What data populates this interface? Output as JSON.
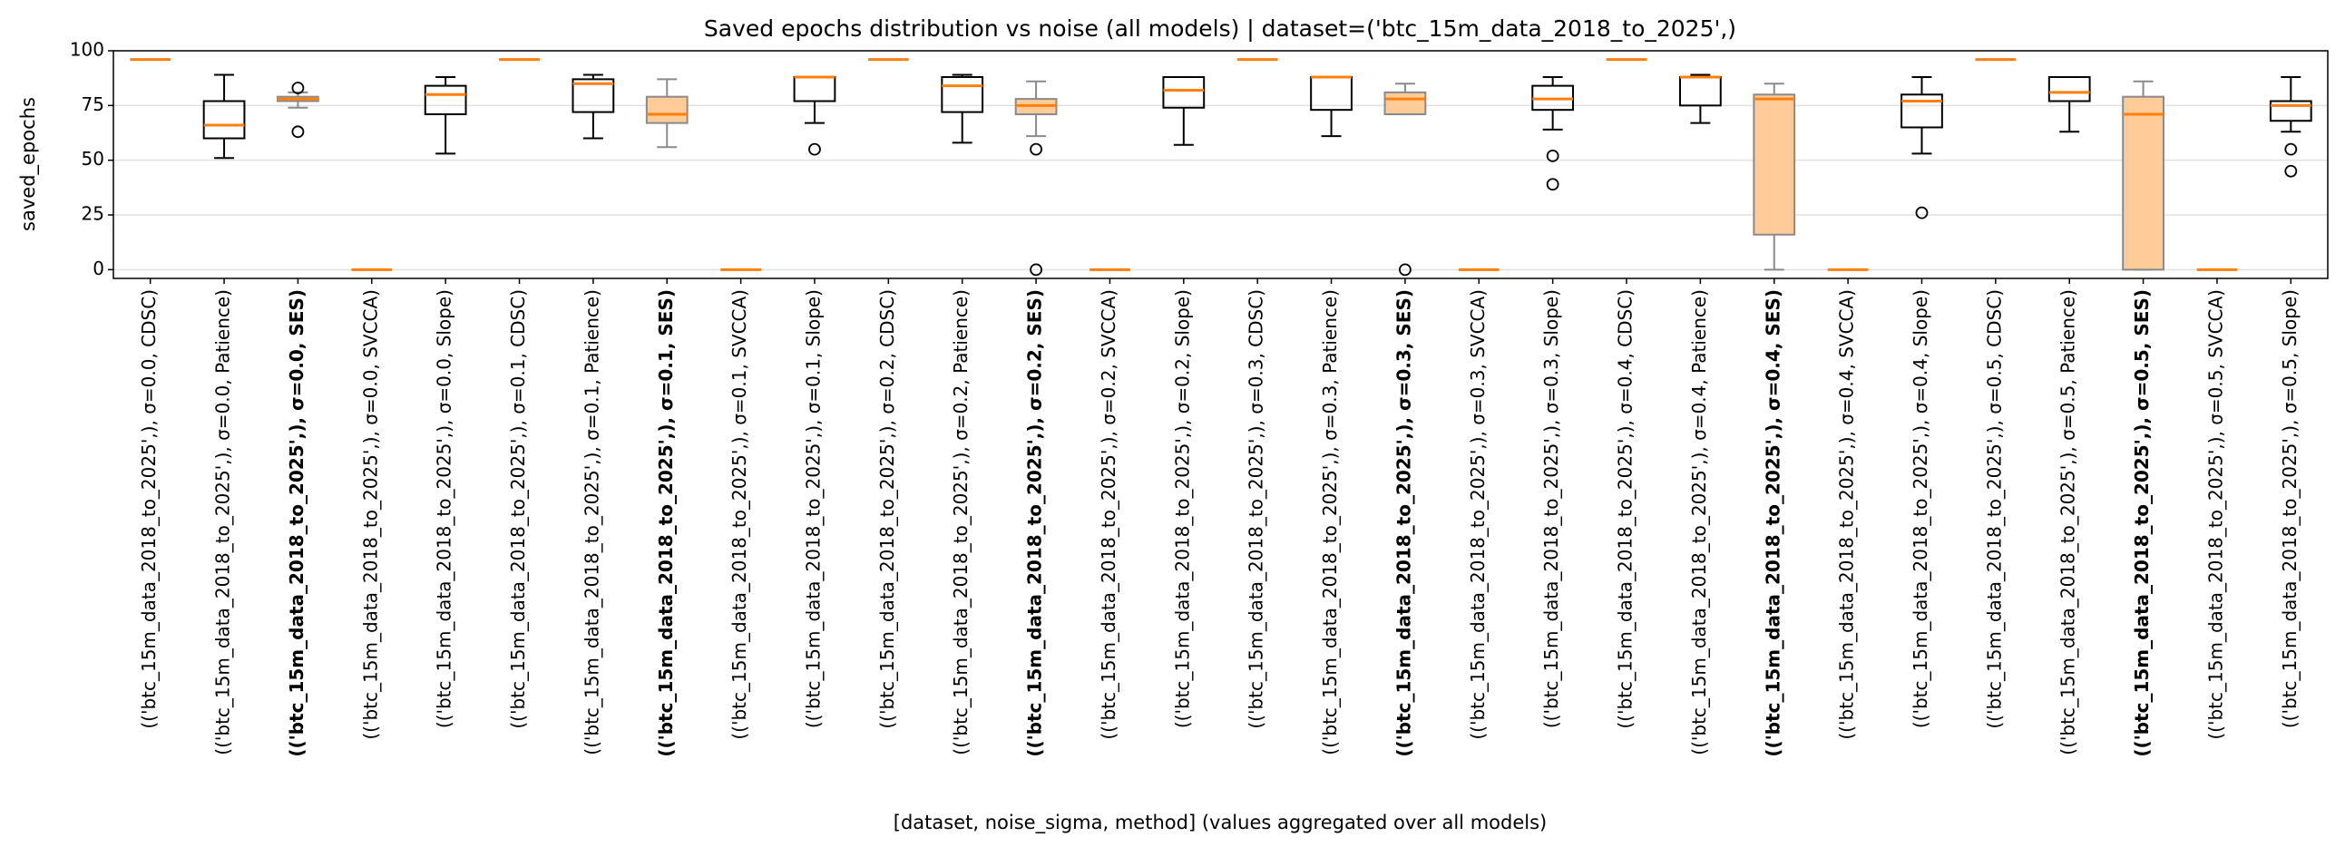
{
  "chart_data": {
    "type": "box",
    "title": "Saved epochs distribution vs noise (all models) | dataset=('btc_15m_data_2018_to_2025',)",
    "xlabel": "[dataset, noise_sigma, method] (values aggregated over all models)",
    "ylabel": "saved_epochs",
    "ylim": [
      -4,
      100
    ],
    "yticks": [
      0,
      25,
      50,
      75,
      100
    ],
    "grid": true,
    "box_color": "#000000",
    "median_color": "#ff7f0e",
    "highlight_color": "#ff7f0e",
    "highlight_fill": "#ffcc99",
    "highlight": [
      2,
      7,
      12,
      17,
      22,
      27
    ],
    "categories": [
      "(('btc_15m_data_2018_to_2025',), σ=0.0, CDSC)",
      "(('btc_15m_data_2018_to_2025',), σ=0.0, Patience)",
      "(('btc_15m_data_2018_to_2025',), σ=0.0, SES)",
      "(('btc_15m_data_2018_to_2025',), σ=0.0, SVCCA)",
      "(('btc_15m_data_2018_to_2025',), σ=0.0, Slope)",
      "(('btc_15m_data_2018_to_2025',), σ=0.1, CDSC)",
      "(('btc_15m_data_2018_to_2025',), σ=0.1, Patience)",
      "(('btc_15m_data_2018_to_2025',), σ=0.1, SES)",
      "(('btc_15m_data_2018_to_2025',), σ=0.1, SVCCA)",
      "(('btc_15m_data_2018_to_2025',), σ=0.1, Slope)",
      "(('btc_15m_data_2018_to_2025',), σ=0.2, CDSC)",
      "(('btc_15m_data_2018_to_2025',), σ=0.2, Patience)",
      "(('btc_15m_data_2018_to_2025',), σ=0.2, SES)",
      "(('btc_15m_data_2018_to_2025',), σ=0.2, SVCCA)",
      "(('btc_15m_data_2018_to_2025',), σ=0.2, Slope)",
      "(('btc_15m_data_2018_to_2025',), σ=0.3, CDSC)",
      "(('btc_15m_data_2018_to_2025',), σ=0.3, Patience)",
      "(('btc_15m_data_2018_to_2025',), σ=0.3, SES)",
      "(('btc_15m_data_2018_to_2025',), σ=0.3, SVCCA)",
      "(('btc_15m_data_2018_to_2025',), σ=0.3, Slope)",
      "(('btc_15m_data_2018_to_2025',), σ=0.4, CDSC)",
      "(('btc_15m_data_2018_to_2025',), σ=0.4, Patience)",
      "(('btc_15m_data_2018_to_2025',), σ=0.4, SES)",
      "(('btc_15m_data_2018_to_2025',), σ=0.4, SVCCA)",
      "(('btc_15m_data_2018_to_2025',), σ=0.4, Slope)",
      "(('btc_15m_data_2018_to_2025',), σ=0.5, CDSC)",
      "(('btc_15m_data_2018_to_2025',), σ=0.5, Patience)",
      "(('btc_15m_data_2018_to_2025',), σ=0.5, SES)",
      "(('btc_15m_data_2018_to_2025',), σ=0.5, SVCCA)",
      "(('btc_15m_data_2018_to_2025',), σ=0.5, Slope)"
    ],
    "boxes": [
      {
        "min": 96,
        "q1": 96,
        "median": 96,
        "q3": 96,
        "max": 96,
        "outliers": []
      },
      {
        "min": 51,
        "q1": 60,
        "median": 66,
        "q3": 77,
        "max": 89,
        "outliers": []
      },
      {
        "min": 74,
        "q1": 77,
        "median": 78,
        "q3": 79,
        "max": 81,
        "outliers": [
          63,
          83
        ]
      },
      {
        "min": 0,
        "q1": 0,
        "median": 0,
        "q3": 0,
        "max": 0,
        "outliers": []
      },
      {
        "min": 53,
        "q1": 71,
        "median": 80,
        "q3": 84,
        "max": 88,
        "outliers": []
      },
      {
        "min": 96,
        "q1": 96,
        "median": 96,
        "q3": 96,
        "max": 96,
        "outliers": []
      },
      {
        "min": 60,
        "q1": 72,
        "median": 85,
        "q3": 87,
        "max": 89,
        "outliers": []
      },
      {
        "min": 56,
        "q1": 67,
        "median": 71,
        "q3": 79,
        "max": 87,
        "outliers": []
      },
      {
        "min": 0,
        "q1": 0,
        "median": 0,
        "q3": 0,
        "max": 0,
        "outliers": []
      },
      {
        "min": 67,
        "q1": 77,
        "median": 88,
        "q3": 88,
        "max": 88,
        "outliers": [
          55
        ]
      },
      {
        "min": 96,
        "q1": 96,
        "median": 96,
        "q3": 96,
        "max": 96,
        "outliers": []
      },
      {
        "min": 58,
        "q1": 72,
        "median": 84,
        "q3": 88,
        "max": 89,
        "outliers": []
      },
      {
        "min": 61,
        "q1": 71,
        "median": 75,
        "q3": 78,
        "max": 86,
        "outliers": [
          55,
          0
        ]
      },
      {
        "min": 0,
        "q1": 0,
        "median": 0,
        "q3": 0,
        "max": 0,
        "outliers": []
      },
      {
        "min": 57,
        "q1": 74,
        "median": 82,
        "q3": 88,
        "max": 88,
        "outliers": []
      },
      {
        "min": 96,
        "q1": 96,
        "median": 96,
        "q3": 96,
        "max": 96,
        "outliers": []
      },
      {
        "min": 61,
        "q1": 73,
        "median": 88,
        "q3": 88,
        "max": 88,
        "outliers": []
      },
      {
        "min": 71,
        "q1": 71,
        "median": 78,
        "q3": 81,
        "max": 85,
        "outliers": [
          0
        ]
      },
      {
        "min": 0,
        "q1": 0,
        "median": 0,
        "q3": 0,
        "max": 0,
        "outliers": []
      },
      {
        "min": 64,
        "q1": 73,
        "median": 78,
        "q3": 84,
        "max": 88,
        "outliers": [
          52,
          39
        ]
      },
      {
        "min": 96,
        "q1": 96,
        "median": 96,
        "q3": 96,
        "max": 96,
        "outliers": []
      },
      {
        "min": 67,
        "q1": 75,
        "median": 88,
        "q3": 88,
        "max": 89,
        "outliers": []
      },
      {
        "min": 0,
        "q1": 16,
        "median": 78,
        "q3": 80,
        "max": 85,
        "outliers": []
      },
      {
        "min": 0,
        "q1": 0,
        "median": 0,
        "q3": 0,
        "max": 0,
        "outliers": []
      },
      {
        "min": 53,
        "q1": 65,
        "median": 77,
        "q3": 80,
        "max": 88,
        "outliers": [
          26
        ]
      },
      {
        "min": 96,
        "q1": 96,
        "median": 96,
        "q3": 96,
        "max": 96,
        "outliers": []
      },
      {
        "min": 63,
        "q1": 77,
        "median": 81,
        "q3": 88,
        "max": 88,
        "outliers": []
      },
      {
        "min": 0,
        "q1": 0,
        "median": 71,
        "q3": 79,
        "max": 86,
        "outliers": []
      },
      {
        "min": 0,
        "q1": 0,
        "median": 0,
        "q3": 0,
        "max": 0,
        "outliers": []
      },
      {
        "min": 63,
        "q1": 68,
        "median": 75,
        "q3": 77,
        "max": 88,
        "outliers": [
          55,
          45
        ]
      }
    ]
  }
}
